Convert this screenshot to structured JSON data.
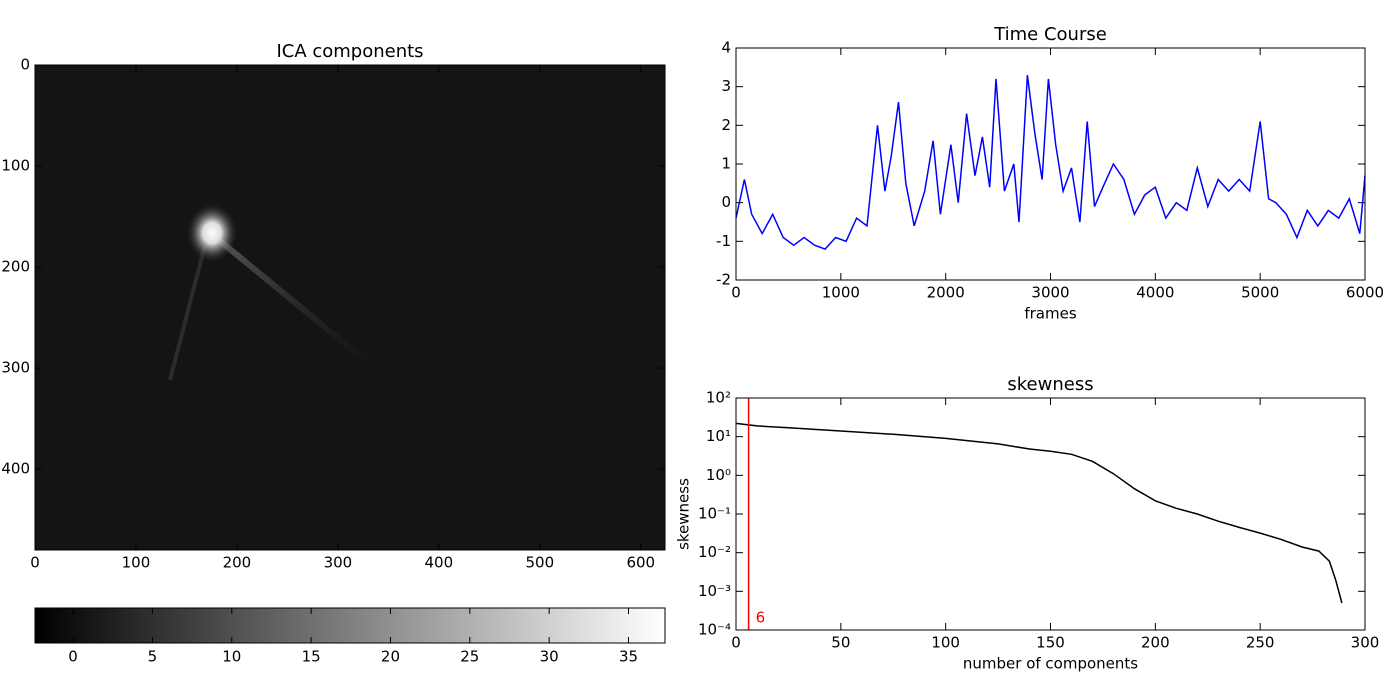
{
  "chart_data": [
    {
      "type": "image",
      "title": "ICA components",
      "cmap": "gray",
      "xlim": [
        0,
        624
      ],
      "ylim": [
        480,
        0
      ],
      "xticks": [
        0,
        100,
        200,
        300,
        400,
        500,
        600
      ],
      "yticks": [
        0,
        100,
        200,
        300,
        400
      ],
      "colorbar": {
        "lim": [
          -2.4,
          37.3
        ],
        "ticks": [
          0,
          5,
          10,
          15,
          20,
          25,
          30,
          35
        ]
      }
    },
    {
      "type": "line",
      "title": "Time Course",
      "xlabel": "frames",
      "color": "#0000ff",
      "xlim": [
        0,
        6000
      ],
      "ylim": [
        -2,
        4
      ],
      "xticks": [
        0,
        1000,
        2000,
        3000,
        4000,
        5000,
        6000
      ],
      "yticks": [
        -2,
        -1,
        0,
        1,
        2,
        3,
        4
      ],
      "x": [
        0,
        80,
        150,
        250,
        350,
        450,
        550,
        650,
        750,
        850,
        950,
        1050,
        1150,
        1250,
        1350,
        1420,
        1480,
        1550,
        1620,
        1700,
        1800,
        1880,
        1950,
        2050,
        2120,
        2200,
        2280,
        2350,
        2420,
        2480,
        2560,
        2650,
        2700,
        2780,
        2850,
        2920,
        2980,
        3050,
        3120,
        3200,
        3280,
        3350,
        3420,
        3500,
        3600,
        3700,
        3800,
        3900,
        4000,
        4100,
        4200,
        4300,
        4400,
        4500,
        4600,
        4700,
        4800,
        4900,
        5000,
        5080,
        5150,
        5250,
        5350,
        5450,
        5550,
        5650,
        5750,
        5850,
        5950,
        6000
      ],
      "values": [
        -0.4,
        0.6,
        -0.3,
        -0.8,
        -0.3,
        -0.9,
        -1.1,
        -0.9,
        -1.1,
        -1.2,
        -0.9,
        -1.0,
        -0.4,
        -0.6,
        2.0,
        0.3,
        1.2,
        2.6,
        0.5,
        -0.6,
        0.3,
        1.6,
        -0.3,
        1.5,
        0.0,
        2.3,
        0.7,
        1.7,
        0.4,
        3.2,
        0.3,
        1.0,
        -0.5,
        3.3,
        1.8,
        0.6,
        3.2,
        1.5,
        0.3,
        0.9,
        -0.5,
        2.1,
        -0.1,
        0.4,
        1.0,
        0.6,
        -0.3,
        0.2,
        0.4,
        -0.4,
        0.0,
        -0.2,
        0.9,
        -0.1,
        0.6,
        0.3,
        0.6,
        0.3,
        2.1,
        0.1,
        0.0,
        -0.3,
        -0.9,
        -0.2,
        -0.6,
        -0.2,
        -0.4,
        0.1,
        -0.8,
        0.7
      ]
    },
    {
      "type": "line",
      "title": "skewness",
      "xlabel": "number of components",
      "ylabel": "skewness",
      "color": "#000000",
      "log_y": true,
      "xlim": [
        0,
        300
      ],
      "ylim": [
        0.0001,
        100
      ],
      "xticks": [
        0,
        50,
        100,
        150,
        200,
        250,
        300
      ],
      "yticks": [
        {
          "value": 0.0001,
          "label": "10⁻⁴"
        },
        {
          "value": 0.001,
          "label": "10⁻³"
        },
        {
          "value": 0.01,
          "label": "10⁻²"
        },
        {
          "value": 0.1,
          "label": "10⁻¹"
        },
        {
          "value": 1,
          "label": "10⁰"
        },
        {
          "value": 10,
          "label": "10¹"
        },
        {
          "value": 100,
          "label": "10²"
        }
      ],
      "x": [
        0,
        10,
        25,
        50,
        75,
        100,
        125,
        140,
        150,
        160,
        170,
        180,
        190,
        200,
        210,
        220,
        230,
        240,
        250,
        260,
        270,
        278,
        283,
        286,
        289
      ],
      "values": [
        22,
        19,
        17,
        14,
        11.5,
        9,
        6.5,
        4.8,
        4.2,
        3.5,
        2.3,
        1.1,
        0.45,
        0.22,
        0.14,
        0.1,
        0.065,
        0.045,
        0.032,
        0.022,
        0.014,
        0.011,
        0.006,
        0.002,
        0.0005
      ],
      "vline": 6,
      "vline_color": "#ff0000"
    }
  ]
}
